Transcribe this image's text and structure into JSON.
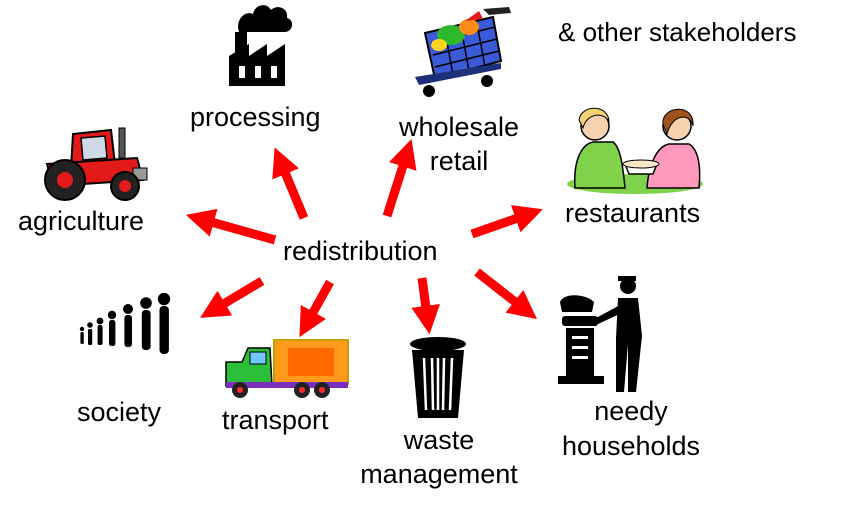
{
  "center_label": "redistribution",
  "note": "& other stakeholders",
  "nodes": {
    "processing": {
      "label": "processing",
      "icon": "factory-icon"
    },
    "wholesale_retail": {
      "line1": "wholesale",
      "line2": "retail",
      "icon": "shopping-cart-icon"
    },
    "restaurants": {
      "label": "restaurants",
      "icon": "diners-icon"
    },
    "agriculture": {
      "label": "agriculture",
      "icon": "tractor-icon"
    },
    "society": {
      "label": "society",
      "icon": "people-icon"
    },
    "transport": {
      "label": "transport",
      "icon": "truck-icon"
    },
    "waste_management": {
      "line1": "waste",
      "line2": "management",
      "icon": "trash-can-icon"
    },
    "needy_households": {
      "line1": "needy",
      "line2": "households",
      "icon": "person-grill-icon"
    }
  },
  "colors": {
    "arrow": "#ff0000",
    "text": "#000000"
  }
}
